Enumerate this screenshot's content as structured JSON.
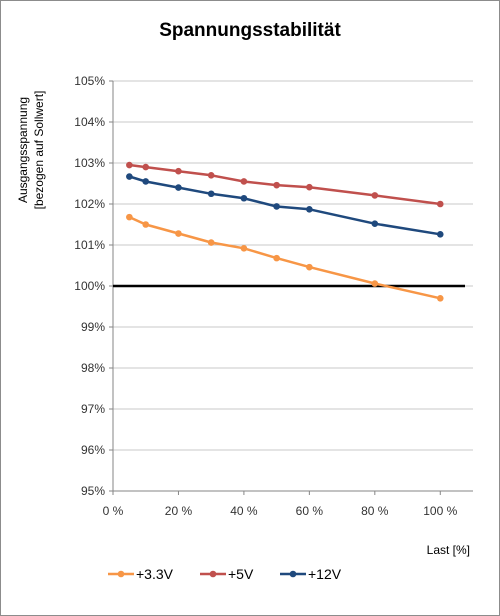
{
  "chart_data": {
    "type": "line",
    "title": "Spannungsstabilität",
    "ylabel_lines": [
      "Ausgangsspannung",
      "[bezogen auf Sollwert]"
    ],
    "xlabel": "Last [%]",
    "xlim": [
      0,
      110
    ],
    "ylim": [
      95,
      105
    ],
    "x_ticks": [
      0,
      20,
      40,
      60,
      80,
      100
    ],
    "x_tick_labels": [
      "0 %",
      "20 %",
      "40 %",
      "60 %",
      "80 %",
      "100 %"
    ],
    "y_ticks": [
      95,
      96,
      97,
      98,
      99,
      100,
      101,
      102,
      103,
      104,
      105
    ],
    "y_tick_labels": [
      "95%",
      "96%",
      "97%",
      "98%",
      "99%",
      "100%",
      "101%",
      "102%",
      "103%",
      "104%",
      "105%"
    ],
    "grid": "horizontal",
    "legend_position": "bottom",
    "reference_line": {
      "y": 100,
      "color": "#000000"
    },
    "series": [
      {
        "name": "+3.3V",
        "color": "#f79646",
        "x": [
          5,
          10,
          20,
          30,
          40,
          50,
          60,
          80,
          100
        ],
        "y": [
          101.68,
          101.5,
          101.28,
          101.06,
          100.92,
          100.68,
          100.46,
          100.06,
          99.7
        ]
      },
      {
        "name": "+5V",
        "color": "#c0504d",
        "x": [
          5,
          10,
          20,
          30,
          40,
          50,
          60,
          80,
          100
        ],
        "y": [
          102.95,
          102.9,
          102.8,
          102.7,
          102.55,
          102.46,
          102.41,
          102.21,
          102.0
        ]
      },
      {
        "name": "+12V",
        "color": "#1f497d",
        "x": [
          5,
          10,
          20,
          30,
          40,
          50,
          60,
          80,
          100
        ],
        "y": [
          102.67,
          102.55,
          102.4,
          102.25,
          102.14,
          101.94,
          101.87,
          101.52,
          101.26
        ]
      }
    ]
  }
}
